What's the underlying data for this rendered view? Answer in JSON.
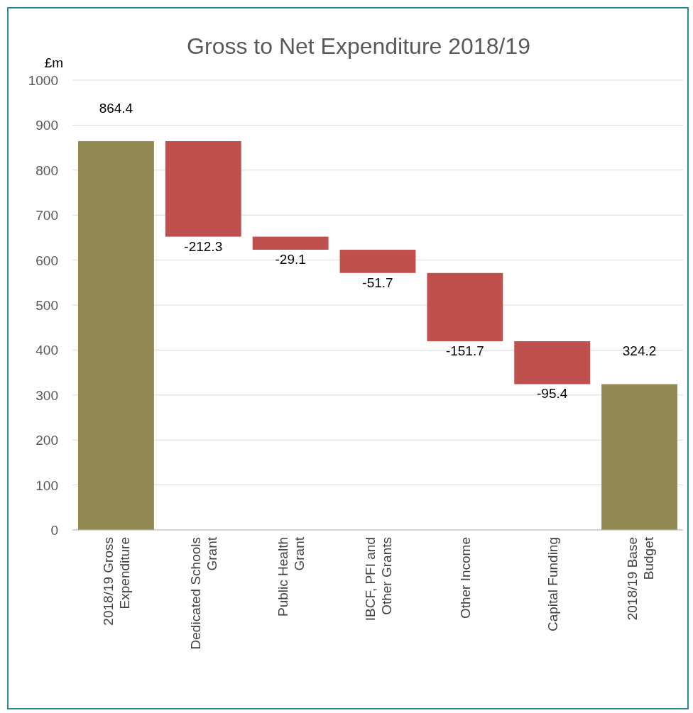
{
  "chart_data": {
    "type": "bar",
    "title": "Gross to Net Expenditure 2018/19",
    "ylabel": "£m",
    "categories": [
      "2018/19 Gross Expenditure",
      "Dedicated Schools Grant",
      "Public Health Grant",
      "IBCF, PFI and Other Grants",
      "Other Income",
      "Capital Funding",
      "2018/19 Base Budget"
    ],
    "values": [
      864.4,
      -212.3,
      -29.1,
      -51.7,
      -151.7,
      -95.4,
      324.2
    ],
    "base": [
      0,
      864.4,
      652.1,
      623.0,
      571.3,
      419.6,
      0
    ],
    "colors": [
      "#938953",
      "#c0504d",
      "#c0504d",
      "#c0504d",
      "#c0504d",
      "#c0504d",
      "#938953"
    ],
    "ylim": [
      0,
      1000
    ],
    "yticks": [
      0,
      100,
      200,
      300,
      400,
      500,
      600,
      700,
      800,
      900,
      1000
    ],
    "grid": "y",
    "data_labels": true
  }
}
